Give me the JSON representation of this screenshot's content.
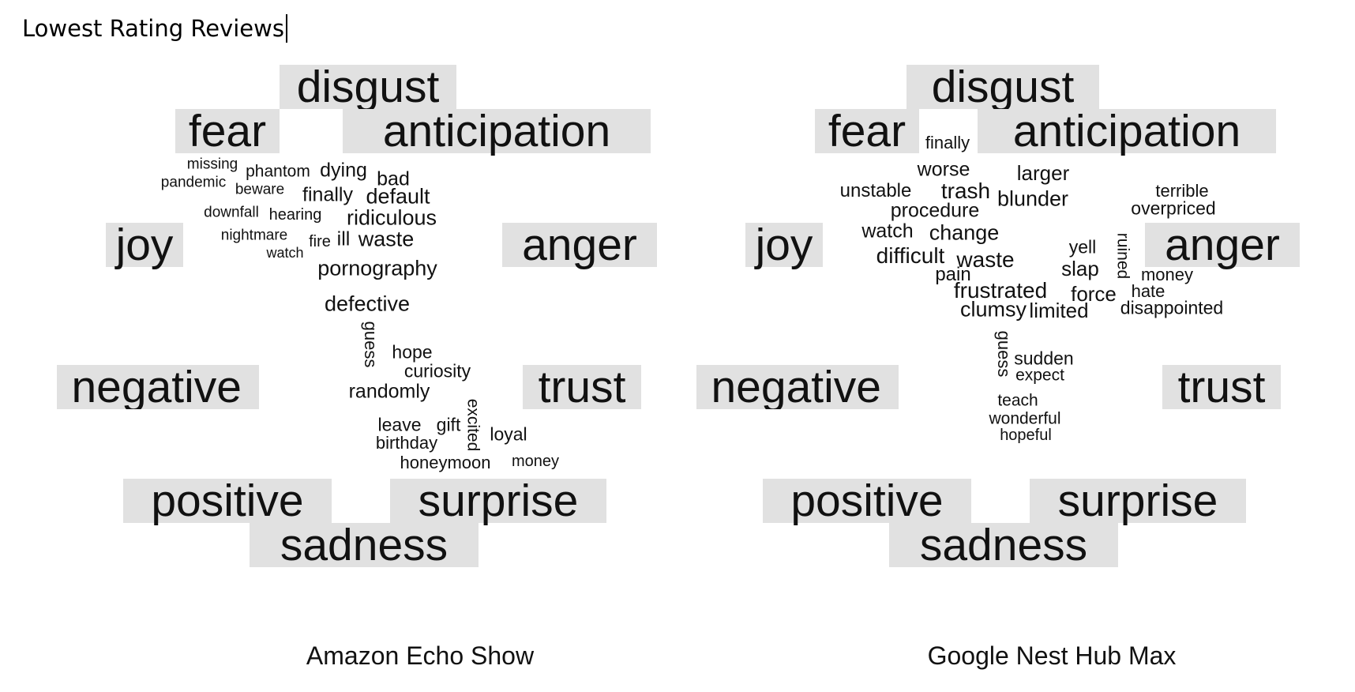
{
  "document": {
    "title": "Lowest Rating Reviews"
  },
  "clouds": [
    {
      "caption": "Amazon Echo Show",
      "categories": [
        "disgust",
        "fear",
        "anticipation",
        "joy",
        "anger",
        "negative",
        "trust",
        "positive",
        "surprise",
        "sadness"
      ],
      "words": [
        "missing",
        "phantom",
        "dying",
        "bad",
        "pandemic",
        "beware",
        "finally",
        "default",
        "downfall",
        "hearing",
        "ridiculous",
        "nightmare",
        "fire",
        "ill",
        "waste",
        "watch",
        "pornography",
        "defective",
        "guess",
        "hope",
        "curiosity",
        "randomly",
        "excited",
        "leave",
        "gift",
        "loyal",
        "birthday",
        "honeymoon",
        "money"
      ]
    },
    {
      "caption": "Google Nest Hub Max",
      "categories": [
        "disgust",
        "fear",
        "anticipation",
        "joy",
        "anger",
        "negative",
        "trust",
        "positive",
        "surprise",
        "sadness"
      ],
      "words": [
        "finally",
        "worse",
        "larger",
        "unstable",
        "trash",
        "blunder",
        "terrible",
        "procedure",
        "overpriced",
        "watch",
        "change",
        "yell",
        "ruined",
        "difficult",
        "waste",
        "slap",
        "money",
        "pain",
        "frustrated",
        "force",
        "hate",
        "clumsy",
        "limited",
        "disappointed",
        "guess",
        "sudden",
        "expect",
        "teach",
        "wonderful",
        "hopeful"
      ]
    }
  ]
}
